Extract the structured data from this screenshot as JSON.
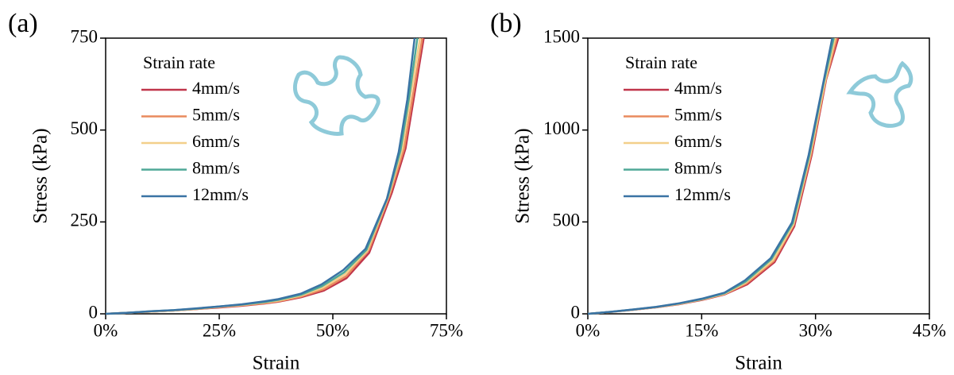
{
  "chart_data": [
    {
      "type": "line",
      "panel": "(a)",
      "x_label": "Strain",
      "y_label": "Stress (kPa)",
      "legend_title": "Strain rate",
      "xlim": [
        0,
        75
      ],
      "ylim": [
        0,
        750
      ],
      "xticks": [
        {
          "value": 0,
          "label": "0%"
        },
        {
          "value": 25,
          "label": "25%"
        },
        {
          "value": 50,
          "label": "50%"
        },
        {
          "value": 75,
          "label": "75%"
        }
      ],
      "yticks": [
        0,
        250,
        500,
        750
      ],
      "series": [
        {
          "name": "4mm/s",
          "color": "#c0354a",
          "x": [
            0,
            5,
            10,
            15,
            20,
            25,
            30,
            35,
            38,
            43,
            48,
            53,
            58,
            63,
            66,
            68,
            70
          ],
          "values": [
            0,
            3,
            6,
            9,
            13,
            17,
            22,
            28,
            33,
            45,
            63,
            97,
            166,
            330,
            450,
            600,
            750
          ]
        },
        {
          "name": "5mm/s",
          "color": "#e98a5e",
          "x": [
            0,
            5,
            10,
            15,
            20,
            25,
            30,
            35,
            38,
            43,
            48,
            53,
            58,
            62.7,
            65.7,
            67.7,
            69.7
          ],
          "values": [
            0,
            3,
            6,
            9,
            13,
            18,
            23,
            29,
            34,
            47,
            67,
            103,
            175,
            330,
            450,
            600,
            750
          ]
        },
        {
          "name": "6mm/s",
          "color": "#f3cf8a",
          "x": [
            0,
            5,
            10,
            15,
            20,
            25,
            30,
            35,
            38,
            43,
            47.8,
            52.7,
            57.6,
            62.3,
            65.3,
            67.2,
            69.2
          ],
          "values": [
            0,
            3,
            6,
            9,
            14,
            19,
            24,
            31,
            36,
            50,
            71,
            108,
            172,
            322,
            450,
            600,
            750
          ]
        },
        {
          "name": "8mm/s",
          "color": "#4fa897",
          "x": [
            0,
            5,
            10,
            15,
            20,
            25,
            30,
            35,
            38,
            43,
            47.6,
            52.5,
            57.4,
            62.1,
            64.9,
            66.8,
            68.6
          ],
          "values": [
            0,
            3,
            7,
            10,
            14,
            20,
            25,
            32,
            38,
            52,
            75,
            113,
            174,
            318,
            445,
            590,
            750
          ]
        },
        {
          "name": "12mm/s",
          "color": "#3a73a4",
          "x": [
            0,
            5,
            10,
            15,
            20,
            25,
            30,
            35,
            38,
            43,
            47.5,
            52.3,
            57.2,
            61.9,
            64.5,
            66.4,
            68
          ],
          "values": [
            0,
            3,
            7,
            10,
            15,
            20,
            26,
            34,
            40,
            55,
            80,
            119,
            177,
            313,
            440,
            583,
            750
          ]
        }
      ]
    },
    {
      "type": "line",
      "panel": "(b)",
      "x_label": "Strain",
      "y_label": "Stress (kPa)",
      "legend_title": "Strain rate",
      "xlim": [
        0,
        45
      ],
      "ylim": [
        0,
        1500
      ],
      "xticks": [
        {
          "value": 0,
          "label": "0%"
        },
        {
          "value": 15,
          "label": "15%"
        },
        {
          "value": 30,
          "label": "30%"
        },
        {
          "value": 45,
          "label": "45%"
        }
      ],
      "yticks": [
        0,
        500,
        1000,
        1500
      ],
      "series": [
        {
          "name": "4mm/s",
          "color": "#c0354a",
          "x": [
            0,
            3,
            6,
            9,
            12,
            15,
            18,
            21,
            24.6,
            27.2,
            29.5,
            31.4,
            33
          ],
          "values": [
            0,
            10,
            22,
            35,
            52,
            75,
            105,
            160,
            281,
            476,
            865,
            1275,
            1500
          ]
        },
        {
          "name": "5mm/s",
          "color": "#e98a5e",
          "x": [
            0,
            3,
            6,
            9,
            12,
            15,
            18,
            20.9,
            24.5,
            27.1,
            29.4,
            31.3,
            32.8
          ],
          "values": [
            0,
            10,
            22,
            36,
            53,
            77,
            107,
            165,
            287,
            482,
            865,
            1265,
            1500
          ]
        },
        {
          "name": "6mm/s",
          "color": "#f3cf8a",
          "x": [
            0,
            3,
            6,
            9,
            12,
            15,
            18,
            20.8,
            24.4,
            27.1,
            29.3,
            31.2,
            32.6
          ],
          "values": [
            0,
            10,
            23,
            36,
            54,
            78,
            109,
            170,
            292,
            488,
            865,
            1255,
            1500
          ]
        },
        {
          "name": "8mm/s",
          "color": "#4fa897",
          "x": [
            0,
            3,
            6,
            9,
            12,
            15,
            18,
            20.8,
            24.2,
            27,
            29.2,
            31,
            32.4
          ],
          "values": [
            0,
            11,
            23,
            37,
            56,
            80,
            112,
            176,
            298,
            493,
            865,
            1243,
            1500
          ]
        },
        {
          "name": "12mm/s",
          "color": "#3a73a4",
          "x": [
            0,
            3,
            6,
            9,
            12,
            15,
            18,
            20.7,
            24.1,
            26.9,
            29.1,
            30.9,
            32.2
          ],
          "values": [
            0,
            11,
            24,
            38,
            57,
            82,
            115,
            182,
            303,
            497,
            865,
            1232,
            1500
          ]
        }
      ]
    }
  ]
}
